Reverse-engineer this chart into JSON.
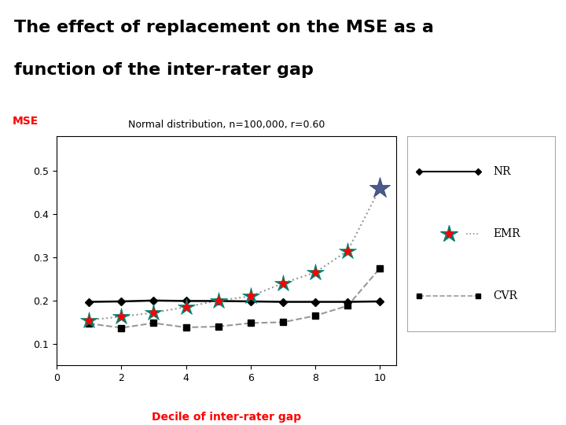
{
  "title_line1": "The effect of replacement on the MSE as a",
  "title_line2": "function of the inter-rater gap",
  "subtitle": "Normal distribution, n=100,000, r=0.60",
  "xlabel": "Decile of inter-rater gap",
  "ylabel": "MSE",
  "title_bg_color": "#29ABE2",
  "title_text_color": "#000000",
  "subtitle_color": "#000000",
  "xlabel_color": "#FF0000",
  "ylabel_color": "#FF0000",
  "x": [
    1,
    2,
    3,
    4,
    5,
    6,
    7,
    8,
    9,
    10
  ],
  "NR": [
    0.197,
    0.198,
    0.2,
    0.199,
    0.199,
    0.198,
    0.197,
    0.197,
    0.197,
    0.198
  ],
  "EMR": [
    0.155,
    0.163,
    0.172,
    0.185,
    0.2,
    0.21,
    0.24,
    0.265,
    0.315,
    0.46
  ],
  "CVR": [
    0.147,
    0.137,
    0.148,
    0.138,
    0.14,
    0.148,
    0.15,
    0.165,
    0.188,
    0.275
  ],
  "ylim": [
    0.05,
    0.58
  ],
  "xlim": [
    0,
    10.5
  ],
  "yticks": [
    0.1,
    0.2,
    0.3,
    0.4,
    0.5
  ],
  "xticks": [
    0,
    2,
    4,
    6,
    8,
    10
  ],
  "NR_color": "#000000",
  "NR_line": "-",
  "NR_marker": "D",
  "NR_marker_color": "#000000",
  "NR_markersize": 5,
  "EMR_line": ":",
  "EMR_line_color": "#999999",
  "EMR_outer_star_color": "#008070",
  "EMR_inner_star_color": "#FF0000",
  "EMR_markersize": 16,
  "EMR_last_color": "#4A5A8A",
  "CVR_line": "--",
  "CVR_line_color": "#999999",
  "CVR_marker": "s",
  "CVR_marker_color": "#000000",
  "CVR_markersize": 6,
  "legend_NR_label": "NR",
  "legend_EMR_label": "EMR",
  "legend_CVR_label": "CVR",
  "fig_bg": "#FFFFFF"
}
